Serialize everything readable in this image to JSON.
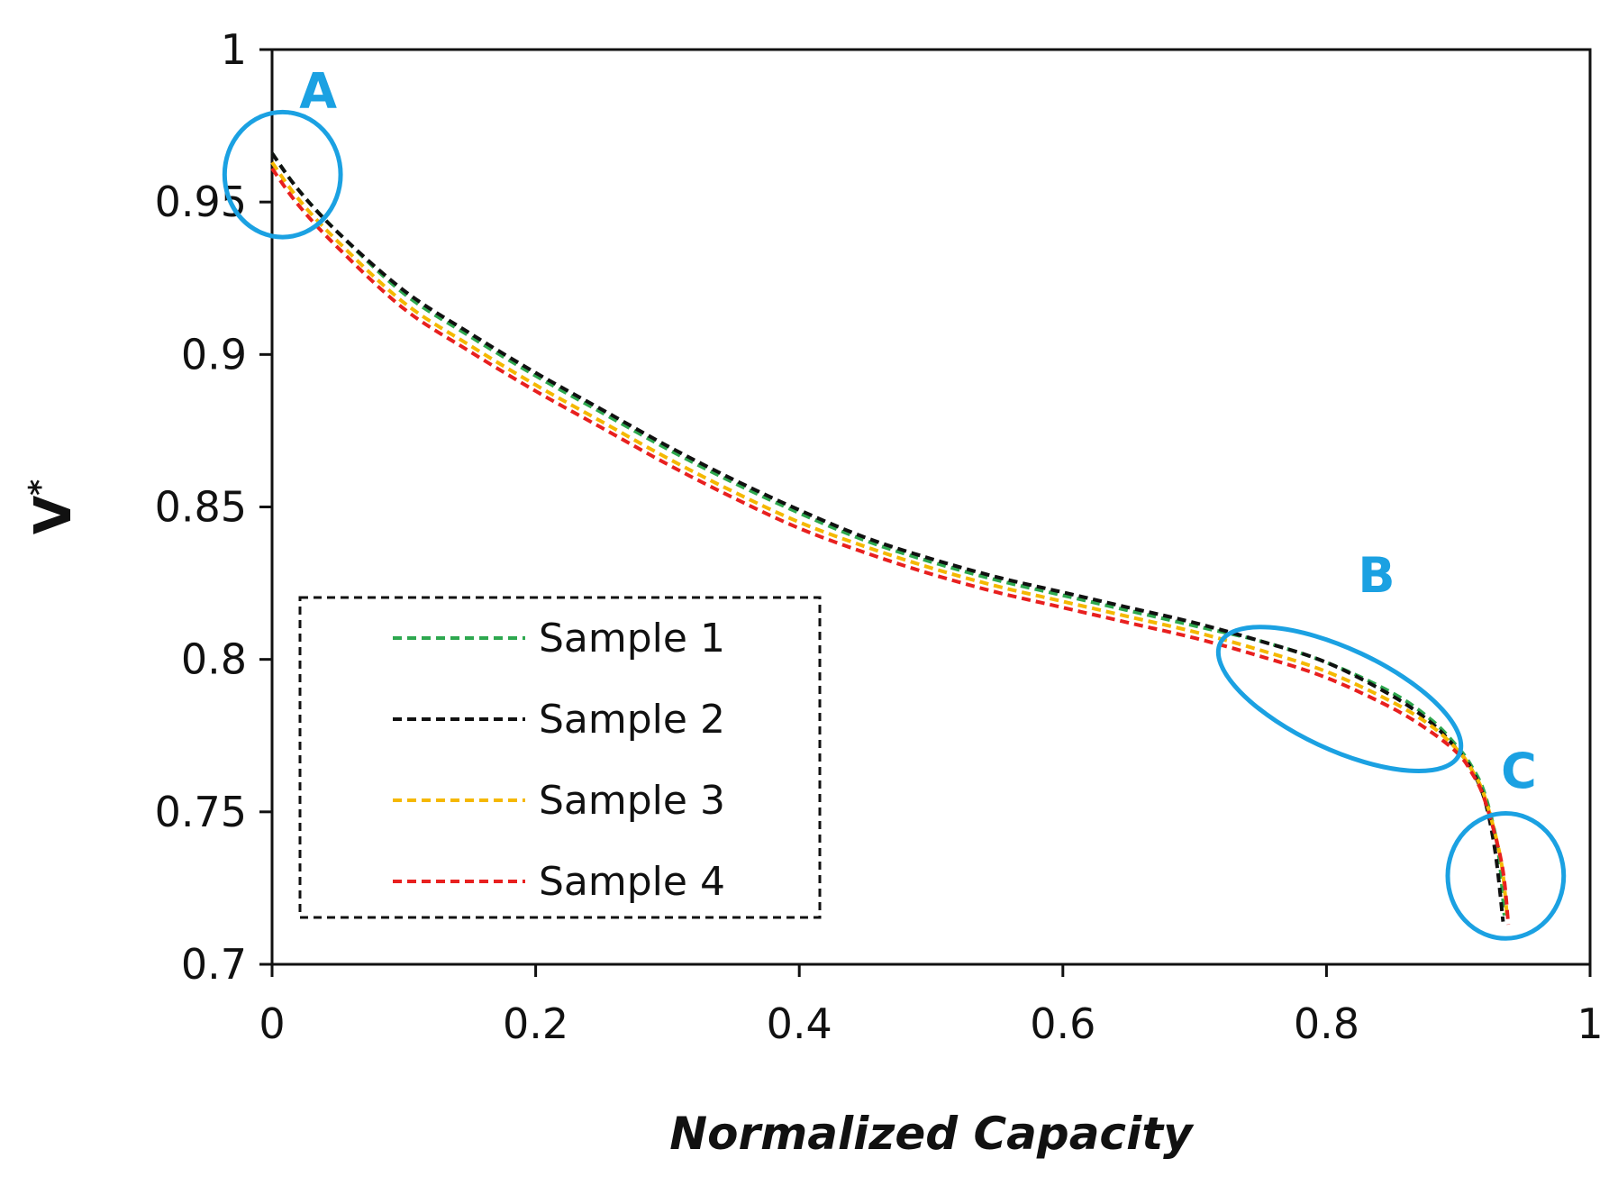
{
  "chart_data": {
    "type": "line",
    "xlabel": "Normalized Capacity",
    "ylabel": "V",
    "ylabel_superscript": "*",
    "xlim": [
      0,
      1
    ],
    "ylim": [
      0.7,
      1
    ],
    "xticks": [
      "0",
      "0.2",
      "0.4",
      "0.6",
      "0.8",
      "1"
    ],
    "yticks": [
      "0.7",
      "0.75",
      "0.8",
      "0.85",
      "0.9",
      "0.95",
      "1"
    ],
    "grid": false,
    "legend_position": "lower-left",
    "legend_border": "dashed",
    "line_style": "dashed",
    "series": [
      {
        "name": "Sample 1",
        "color": "#2ea84f",
        "x": [
          0,
          0.02,
          0.05,
          0.1,
          0.15,
          0.2,
          0.25,
          0.3,
          0.35,
          0.4,
          0.45,
          0.5,
          0.55,
          0.6,
          0.65,
          0.7,
          0.75,
          0.8,
          0.85,
          0.88,
          0.9,
          0.91,
          0.92,
          0.93,
          0.935
        ],
        "y": [
          0.966,
          0.954,
          0.94,
          0.92,
          0.906,
          0.893,
          0.881,
          0.869,
          0.858,
          0.848,
          0.839,
          0.832,
          0.826,
          0.821,
          0.816,
          0.811,
          0.806,
          0.799,
          0.789,
          0.78,
          0.771,
          0.765,
          0.756,
          0.738,
          0.716
        ]
      },
      {
        "name": "Sample 2",
        "color": "#111111",
        "x": [
          0,
          0.02,
          0.05,
          0.1,
          0.15,
          0.2,
          0.25,
          0.3,
          0.35,
          0.4,
          0.45,
          0.5,
          0.55,
          0.6,
          0.65,
          0.7,
          0.75,
          0.8,
          0.85,
          0.88,
          0.9,
          0.91,
          0.92,
          0.928,
          0.934
        ],
        "y": [
          0.966,
          0.954,
          0.94,
          0.921,
          0.907,
          0.894,
          0.882,
          0.87,
          0.859,
          0.849,
          0.84,
          0.833,
          0.827,
          0.822,
          0.817,
          0.812,
          0.806,
          0.799,
          0.788,
          0.779,
          0.77,
          0.764,
          0.754,
          0.737,
          0.714
        ]
      },
      {
        "name": "Sample 3",
        "color": "#f5b800",
        "x": [
          0,
          0.02,
          0.05,
          0.1,
          0.15,
          0.2,
          0.25,
          0.3,
          0.35,
          0.4,
          0.45,
          0.5,
          0.55,
          0.6,
          0.65,
          0.7,
          0.75,
          0.8,
          0.85,
          0.88,
          0.9,
          0.91,
          0.92,
          0.932,
          0.937
        ],
        "y": [
          0.963,
          0.951,
          0.937,
          0.917,
          0.903,
          0.89,
          0.878,
          0.866,
          0.855,
          0.845,
          0.837,
          0.83,
          0.824,
          0.819,
          0.814,
          0.809,
          0.803,
          0.796,
          0.786,
          0.778,
          0.77,
          0.764,
          0.755,
          0.735,
          0.716
        ]
      },
      {
        "name": "Sample 4",
        "color": "#e8201f",
        "x": [
          0,
          0.02,
          0.05,
          0.1,
          0.15,
          0.2,
          0.25,
          0.3,
          0.35,
          0.4,
          0.45,
          0.5,
          0.55,
          0.6,
          0.65,
          0.7,
          0.75,
          0.8,
          0.85,
          0.88,
          0.9,
          0.91,
          0.92,
          0.933,
          0.938
        ],
        "y": [
          0.961,
          0.949,
          0.935,
          0.915,
          0.901,
          0.888,
          0.876,
          0.864,
          0.853,
          0.843,
          0.835,
          0.828,
          0.822,
          0.817,
          0.812,
          0.807,
          0.801,
          0.794,
          0.784,
          0.776,
          0.769,
          0.763,
          0.754,
          0.733,
          0.713
        ]
      }
    ],
    "annotations": [
      {
        "label": "A",
        "color": "#1ba1e2",
        "cx": 0.008,
        "cy": 0.959,
        "rx": 0.044,
        "ry": 0.0205,
        "angle": 0,
        "label_x": 0.035,
        "label_y": 0.981
      },
      {
        "label": "B",
        "color": "#1ba1e2",
        "cx": 0.81,
        "cy": 0.787,
        "rx": 0.1,
        "ry": 0.0165,
        "angle": 25,
        "label_x": 0.838,
        "label_y": 0.822
      },
      {
        "label": "C",
        "color": "#1ba1e2",
        "cx": 0.936,
        "cy": 0.729,
        "rx": 0.044,
        "ry": 0.0205,
        "angle": 0,
        "label_x": 0.946,
        "label_y": 0.758
      }
    ]
  }
}
